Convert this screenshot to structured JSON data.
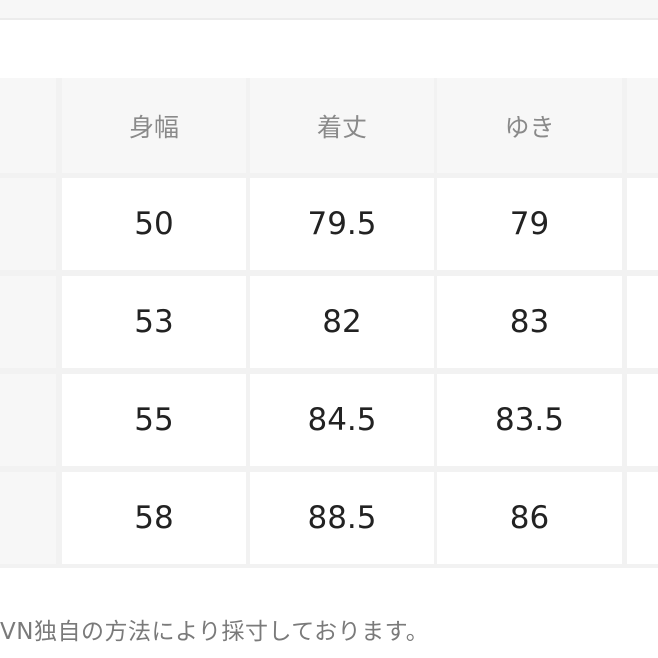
{
  "table": {
    "headers": [
      "",
      "身幅",
      "着丈",
      "ゆき",
      ""
    ],
    "rows": [
      [
        "",
        "50",
        "79.5",
        "79",
        ""
      ],
      [
        "",
        "53",
        "82",
        "83",
        ""
      ],
      [
        "",
        "55",
        "84.5",
        "83.5",
        ""
      ],
      [
        "",
        "58",
        "88.5",
        "86",
        ""
      ]
    ]
  },
  "note": "VN独自の方法により採寸しております。"
}
